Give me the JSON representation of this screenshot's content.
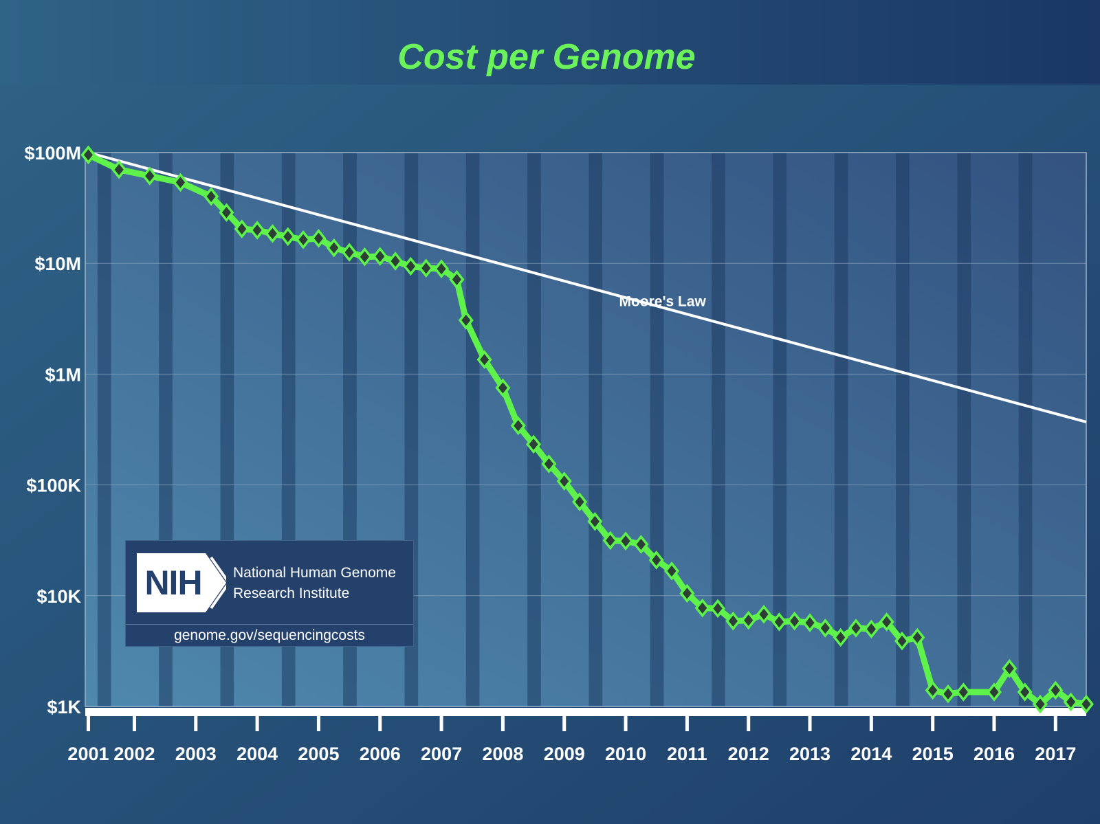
{
  "colors": {
    "title": "#6cf25a",
    "cost_line": "#5ef24b",
    "marker_fill": "#2c3e35",
    "moore_line": "#ffffff",
    "header_band_start": "#2f6386",
    "header_band_end": "#1a3765",
    "plot_start": "#4f88ad",
    "plot_end": "#335280",
    "dark_stripe": "#1d3c62"
  },
  "chart_data": {
    "type": "line",
    "title": "Cost per Genome",
    "xlabel": "",
    "ylabel": "",
    "y_scale": "log",
    "ylim": [
      1000,
      100000000
    ],
    "xlim": [
      2001.7,
      2018.0
    ],
    "grid": true,
    "y_ticks": [
      {
        "value": 100000000,
        "label": "$100M"
      },
      {
        "value": 10000000,
        "label": "$10M"
      },
      {
        "value": 1000000,
        "label": "$1M"
      },
      {
        "value": 100000,
        "label": "$100K"
      },
      {
        "value": 10000,
        "label": "$10K"
      },
      {
        "value": 1000,
        "label": "$1K"
      }
    ],
    "x_ticks": [
      {
        "value": 2001.75,
        "label": "2001"
      },
      {
        "value": 2002.5,
        "label": "2002"
      },
      {
        "value": 2003.5,
        "label": "2003"
      },
      {
        "value": 2004.5,
        "label": "2004"
      },
      {
        "value": 2005.5,
        "label": "2005"
      },
      {
        "value": 2006.5,
        "label": "2006"
      },
      {
        "value": 2007.5,
        "label": "2007"
      },
      {
        "value": 2008.5,
        "label": "2008"
      },
      {
        "value": 2009.5,
        "label": "2009"
      },
      {
        "value": 2010.5,
        "label": "2010"
      },
      {
        "value": 2011.5,
        "label": "2011"
      },
      {
        "value": 2012.5,
        "label": "2012"
      },
      {
        "value": 2013.5,
        "label": "2013"
      },
      {
        "value": 2014.5,
        "label": "2014"
      },
      {
        "value": 2015.5,
        "label": "2015"
      },
      {
        "value": 2016.5,
        "label": "2016"
      },
      {
        "value": 2017.5,
        "label": "2017"
      }
    ],
    "series": [
      {
        "role": "cost",
        "x": [
          2001.75,
          2002.25,
          2002.75,
          2003.25,
          2003.75,
          2004.0,
          2004.25,
          2004.5,
          2004.75,
          2005.0,
          2005.25,
          2005.5,
          2005.75,
          2006.0,
          2006.25,
          2006.5,
          2006.75,
          2007.0,
          2007.25,
          2007.5,
          2007.75,
          2007.9,
          2008.2,
          2008.5,
          2008.75,
          2009.0,
          2009.25,
          2009.5,
          2009.75,
          2010.0,
          2010.25,
          2010.5,
          2010.75,
          2011.0,
          2011.25,
          2011.5,
          2011.75,
          2012.0,
          2012.25,
          2012.5,
          2012.75,
          2013.0,
          2013.25,
          2013.5,
          2013.75,
          2014.0,
          2014.25,
          2014.5,
          2014.75,
          2015.0,
          2015.25,
          2015.5,
          2015.75,
          2016.0,
          2016.5,
          2016.75,
          2017.0,
          2017.25,
          2017.5,
          2017.75,
          2018.0
        ],
        "values": [
          95263072,
          70175437,
          61448422,
          53751684,
          40157554,
          28780376,
          20442576,
          19934346,
          18573699,
          17439241,
          16350245,
          16812815,
          13801124,
          12582170,
          11455410,
          11555400,
          10474556,
          9408739,
          9047003,
          8927342,
          7147571,
          3063820,
          1352982,
          752080,
          342502,
          232735,
          154714,
          108065,
          70333,
          46774,
          31512,
          31125,
          29092,
          20963,
          16712,
          10497,
          7743,
          7666,
          5902,
          6000,
          6800,
          5800,
          5900,
          5700,
          5100,
          4200,
          5100,
          5000,
          5800,
          3900,
          4200,
          1400,
          1300,
          1350,
          1350,
          2200,
          1350,
          1050,
          1400,
          1100,
          1050
        ]
      },
      {
        "role": "moore",
        "name": "Moore's Law",
        "x": [
          2001.75,
          2018.0
        ],
        "values": [
          100000000,
          370000
        ]
      }
    ]
  },
  "logo": {
    "mark": "NIH",
    "org_line1": "National Human Genome",
    "org_line2": "Research Institute",
    "url": "genome.gov/sequencingcosts"
  }
}
